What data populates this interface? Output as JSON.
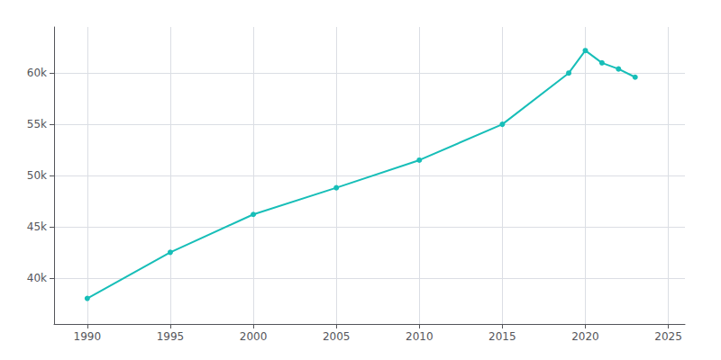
{
  "chart_data": {
    "type": "line",
    "x": [
      1990,
      1995,
      2000,
      2005,
      2010,
      2015,
      2019,
      2020,
      2021,
      2022,
      2023
    ],
    "values": [
      38000,
      42500,
      46200,
      48800,
      51500,
      55000,
      60000,
      62200,
      61000,
      60400,
      59600
    ],
    "color": "#17BEB8",
    "marker": "circle",
    "xlim": [
      1988,
      2026
    ],
    "ylim": [
      35500,
      64500
    ],
    "xticks": [
      1990,
      1995,
      2000,
      2005,
      2010,
      2015,
      2020,
      2025
    ],
    "yticks": [
      {
        "value": 40000,
        "label": "40k"
      },
      {
        "value": 45000,
        "label": "45k"
      },
      {
        "value": 50000,
        "label": "50k"
      },
      {
        "value": 55000,
        "label": "55k"
      },
      {
        "value": 60000,
        "label": "60k"
      }
    ],
    "grid": true
  }
}
